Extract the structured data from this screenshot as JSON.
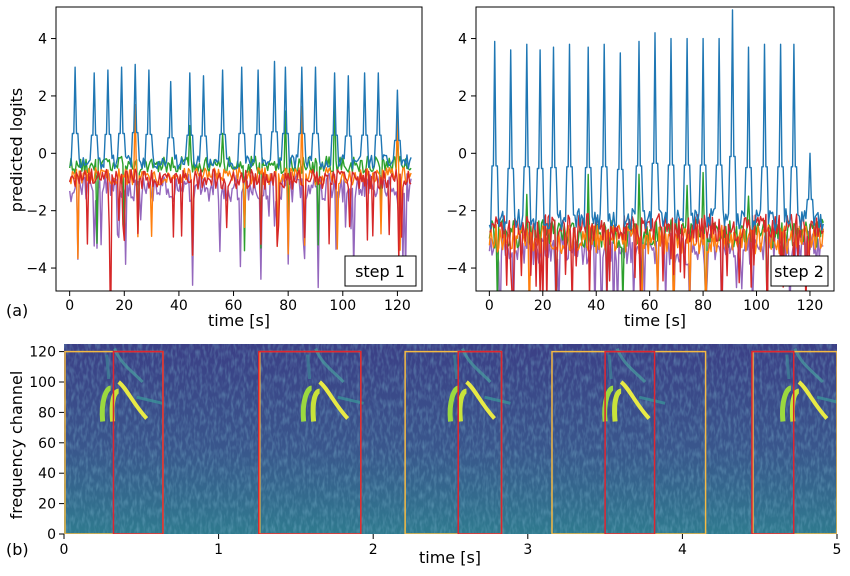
{
  "panels": {
    "a": "(a)",
    "b": "(b)"
  },
  "colors": {
    "series1": "#1f77b4",
    "series2": "#ff7f0e",
    "series3": "#2ca02c",
    "series4": "#d62728",
    "series5": "#9467bd",
    "box_gold": "#f5b942",
    "box_red": "#e0242f",
    "spec_bg": "#3e4a8a",
    "spec_bright": "#e8ea45"
  },
  "chart_data": [
    {
      "type": "line",
      "panel": "(a)",
      "annotation": "step 1",
      "xlabel": "time [s]",
      "ylabel": "predicted logits",
      "xlim": [
        -5,
        129
      ],
      "ylim": [
        -4.8,
        5.1
      ],
      "xticks": [
        0,
        20,
        40,
        60,
        80,
        100,
        120
      ],
      "yticks": [
        -4,
        -2,
        0,
        2,
        4
      ],
      "grid": false,
      "peak_times": [
        2,
        9,
        14,
        19,
        24,
        29,
        37,
        44,
        49,
        56,
        63,
        69,
        75,
        79,
        85,
        90,
        97,
        102,
        108,
        113,
        120
      ],
      "peak_heights": [
        3.0,
        2.8,
        2.9,
        3.0,
        3.1,
        2.9,
        2.5,
        2.8,
        2.7,
        2.9,
        3.0,
        2.9,
        3.2,
        3.0,
        3.0,
        3.0,
        2.8,
        2.7,
        2.8,
        2.8,
        2.2
      ],
      "series": [
        {
          "baseline": -0.3,
          "noise": 0.25
        },
        {
          "baseline": -0.8,
          "noise": 0.3
        },
        {
          "baseline": -0.4,
          "noise": 0.3
        },
        {
          "baseline": -0.9,
          "noise": 0.35
        },
        {
          "baseline": -1.2,
          "noise": 0.5
        }
      ]
    },
    {
      "type": "line",
      "panel": "(a)",
      "annotation": "step 2",
      "xlabel": "time [s]",
      "ylabel": "",
      "xlim": [
        -5,
        129
      ],
      "ylim": [
        -4.8,
        5.1
      ],
      "xticks": [
        0,
        20,
        40,
        60,
        80,
        100,
        120
      ],
      "yticks": [
        -4,
        -2,
        0,
        2,
        4
      ],
      "grid": false,
      "peak_times": [
        2,
        8,
        14,
        19,
        24,
        30,
        37,
        43,
        49,
        56,
        62,
        68,
        74,
        80,
        86,
        91,
        97,
        103,
        109,
        114,
        120
      ],
      "peak_heights": [
        3.9,
        3.6,
        3.8,
        3.6,
        3.7,
        3.8,
        3.7,
        3.8,
        3.5,
        3.9,
        4.2,
        4.0,
        4.0,
        4.0,
        4.0,
        5.0,
        3.7,
        3.8,
        3.8,
        3.8,
        0.0
      ],
      "series": [
        {
          "baseline": -2.3,
          "noise": 0.4
        },
        {
          "baseline": -3.0,
          "noise": 0.5
        },
        {
          "baseline": -2.8,
          "noise": 0.5
        },
        {
          "baseline": -2.6,
          "noise": 0.5
        },
        {
          "baseline": -3.3,
          "noise": 0.6
        }
      ]
    },
    {
      "type": "heatmap",
      "panel": "(b)",
      "xlabel": "time [s]",
      "ylabel": "frequency channel",
      "xlim": [
        0,
        5
      ],
      "ylim": [
        0,
        125
      ],
      "xticks": [
        0,
        1,
        2,
        3,
        4,
        5
      ],
      "yticks": [
        0,
        20,
        40,
        60,
        80,
        100,
        120
      ],
      "syllable_onsets": [
        0.25,
        1.55,
        2.5,
        3.5,
        4.65
      ],
      "gold_boxes": [
        [
          0.0,
          0.64
        ],
        [
          1.26,
          1.92
        ],
        [
          2.2,
          2.83
        ],
        [
          3.15,
          4.15
        ],
        [
          4.45,
          5.0
        ]
      ],
      "red_boxes": [
        [
          0.32,
          0.64
        ],
        [
          1.26,
          1.92
        ],
        [
          2.55,
          2.83
        ],
        [
          3.5,
          3.82
        ],
        [
          4.45,
          4.72
        ]
      ],
      "box_top": 120
    }
  ]
}
